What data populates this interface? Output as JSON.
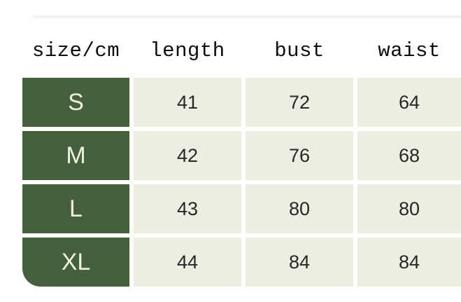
{
  "chart_data": {
    "type": "table",
    "columns": [
      "size/cm",
      "length",
      "bust",
      "waist"
    ],
    "rows": [
      [
        "S",
        41,
        72,
        64
      ],
      [
        "M",
        42,
        76,
        68
      ],
      [
        "L",
        43,
        80,
        80
      ],
      [
        "XL",
        44,
        84,
        84
      ]
    ]
  },
  "colors": {
    "page_bg": "#ffffff",
    "top_strip": "#e8eedd",
    "size_column_bg": "#465f3d",
    "size_column_text": "#ecf2dd",
    "data_cell_bg": "#edeee2",
    "data_cell_text": "#272727",
    "header_text": "#0d0d0d"
  }
}
